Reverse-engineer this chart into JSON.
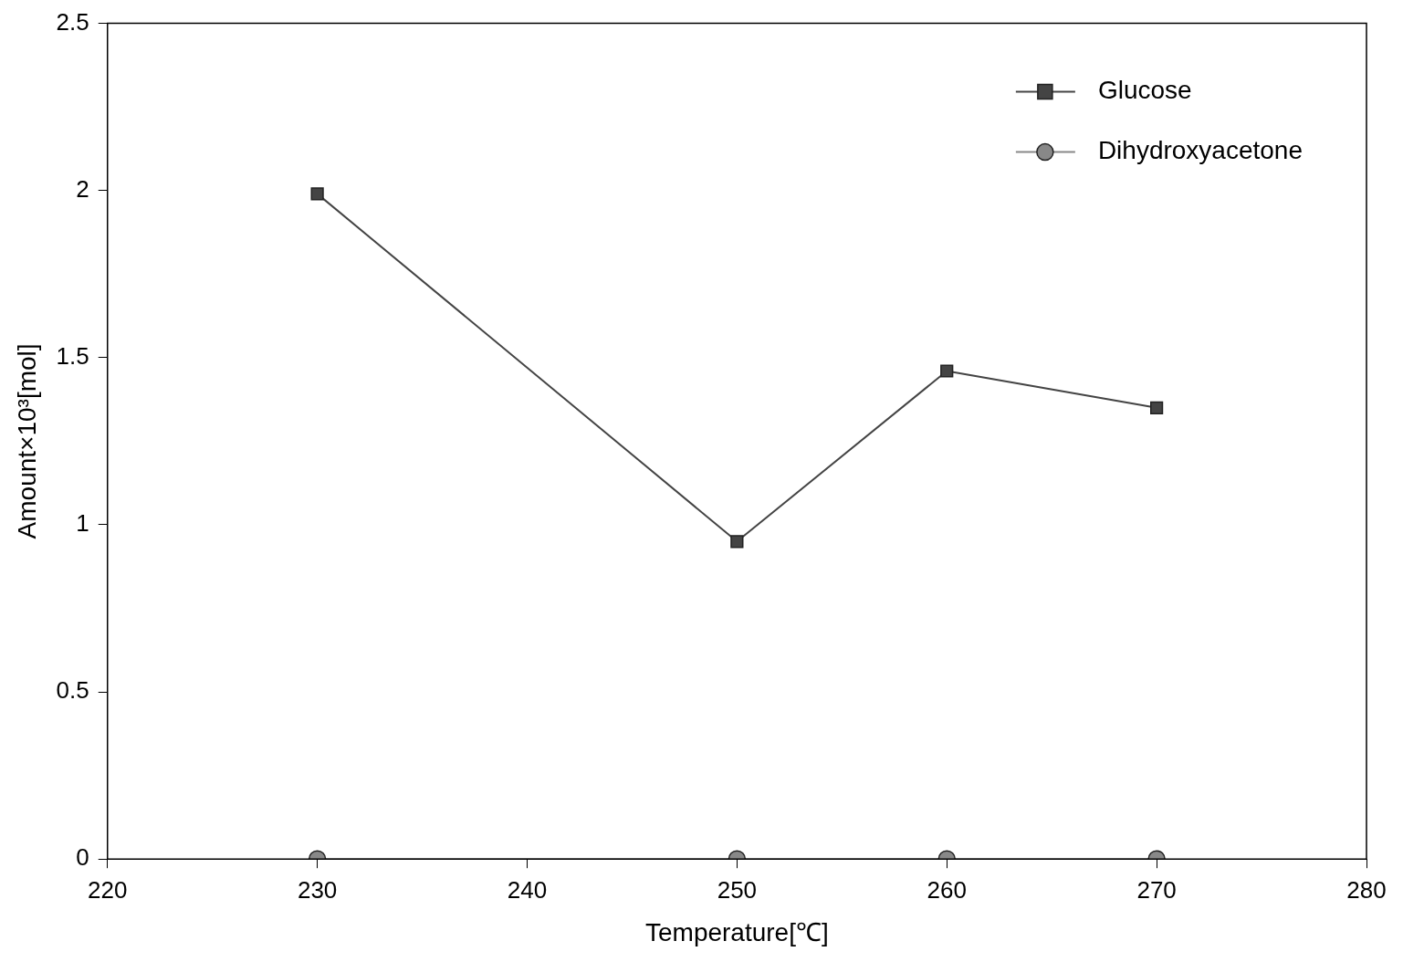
{
  "chart_data": {
    "type": "line",
    "xlabel": "Temperature[℃]",
    "ylabel": "Amount×10³[mol]",
    "x": [
      230,
      250,
      260,
      270
    ],
    "series": [
      {
        "name": "Glucose",
        "color": "#444444",
        "values": [
          1.99,
          0.95,
          1.46,
          1.35
        ],
        "marker": "square"
      },
      {
        "name": "Dihydroxyacetone",
        "color": "#888888",
        "values": [
          0,
          0,
          0,
          0
        ],
        "marker": "circle"
      }
    ],
    "xlim": [
      220,
      280
    ],
    "xticks": [
      220,
      230,
      240,
      250,
      260,
      270,
      280
    ],
    "ylim": [
      0,
      2.5
    ],
    "yticks": [
      0,
      0.5,
      1,
      1.5,
      2,
      2.5
    ],
    "grid": false,
    "legend": "top right",
    "line_style": "solid"
  }
}
